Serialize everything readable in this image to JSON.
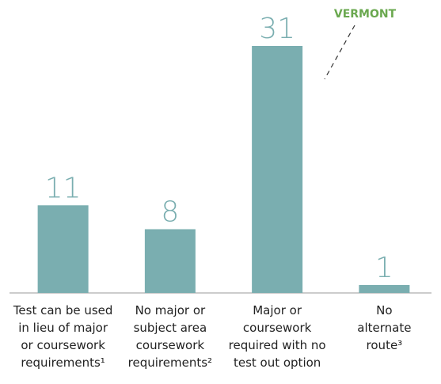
{
  "chart_data": {
    "type": "bar",
    "categories": [
      "Test can be used\nin lieu of major\nor coursework\nrequirements¹",
      "No major or\nsubject area\ncoursework\nrequirements²",
      "Major or\ncoursework\nrequired with no\ntest out option",
      "No\nalternate\nroute³"
    ],
    "values": [
      11,
      8,
      31,
      1
    ],
    "color": "#7aaeb0",
    "annotation": "VERMONT"
  }
}
